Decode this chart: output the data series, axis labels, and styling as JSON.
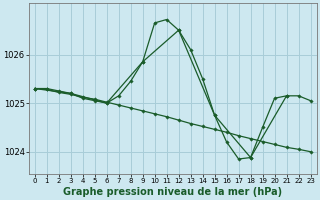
{
  "background_color": "#cde8f0",
  "grid_color": "#a8cdd8",
  "line_color": "#1a5c2a",
  "marker_color": "#1a5c2a",
  "xlabel": "Graphe pression niveau de la mer (hPa)",
  "xlabel_fontsize": 7,
  "xlim": [
    -0.5,
    23.5
  ],
  "ylim": [
    1023.55,
    1027.05
  ],
  "yticks": [
    1024,
    1025,
    1026
  ],
  "xticks": [
    0,
    1,
    2,
    3,
    4,
    5,
    6,
    7,
    8,
    9,
    10,
    11,
    12,
    13,
    14,
    15,
    16,
    17,
    18,
    19,
    20,
    21,
    22,
    23
  ],
  "series": [
    {
      "x": [
        0,
        1,
        2,
        3,
        4,
        5,
        6,
        7,
        8,
        9,
        10,
        11,
        12,
        13,
        14,
        15,
        16,
        17,
        18,
        19,
        20,
        21,
        22,
        23
      ],
      "y": [
        1025.3,
        1025.3,
        1025.25,
        1025.2,
        1025.1,
        1025.05,
        1025.0,
        1025.15,
        1025.45,
        1025.85,
        1026.65,
        1026.72,
        1026.5,
        1026.1,
        1025.5,
        1024.75,
        1024.2,
        1023.85,
        1023.88,
        1024.5,
        1025.1,
        1025.15,
        1025.15,
        1025.05
      ]
    },
    {
      "x": [
        0,
        1,
        2,
        3,
        4,
        5,
        6,
        7,
        8,
        9,
        10,
        11,
        12,
        13,
        14,
        15,
        16,
        17,
        18,
        19,
        20,
        21,
        22,
        23
      ],
      "y": [
        1025.3,
        1025.28,
        1025.22,
        1025.18,
        1025.12,
        1025.08,
        1025.02,
        1024.96,
        1024.9,
        1024.84,
        1024.78,
        1024.72,
        1024.65,
        1024.58,
        1024.52,
        1024.46,
        1024.4,
        1024.33,
        1024.27,
        1024.21,
        1024.15,
        1024.09,
        1024.05,
        1024.0
      ]
    },
    {
      "x": [
        0,
        3,
        6,
        9,
        12,
        15,
        18,
        21
      ],
      "y": [
        1025.3,
        1025.2,
        1025.0,
        1025.85,
        1026.5,
        1024.75,
        1023.88,
        1025.15
      ]
    }
  ]
}
